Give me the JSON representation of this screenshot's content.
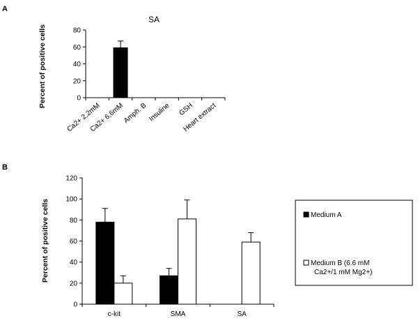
{
  "panels": {
    "a": {
      "letter": "A"
    },
    "b": {
      "letter": "B"
    }
  },
  "colors": {
    "medium_a": "#000000",
    "medium_b": "#ffffff",
    "axis": "#000000"
  },
  "chart_data": [
    {
      "type": "bar",
      "title": "SA",
      "ylabel": "Percent of positive cells",
      "xlabel": "",
      "ylim": [
        0,
        80
      ],
      "yticks": [
        0,
        20,
        40,
        60,
        80
      ],
      "categories": [
        "Ca2+ 2,2mM",
        "Ca2+ 6,6mM",
        "Amph. B",
        "Insuline",
        "GSH",
        "Heart extract"
      ],
      "series": [
        {
          "values": [
            0,
            59,
            0,
            0,
            0,
            0
          ],
          "errors": [
            0,
            8,
            0,
            0,
            0,
            0
          ],
          "color": "#000000"
        }
      ],
      "grid": false,
      "legend": "none"
    },
    {
      "type": "bar",
      "title": "",
      "ylabel": "Percent of positive cells",
      "xlabel": "",
      "ylim": [
        0,
        120
      ],
      "yticks": [
        0,
        20,
        40,
        60,
        80,
        100,
        120
      ],
      "categories": [
        "c-kit",
        "SMA",
        "SA"
      ],
      "series": [
        {
          "name": "Medium A",
          "values": [
            78,
            27,
            0
          ],
          "errors": [
            13,
            7,
            0
          ],
          "color": "#000000"
        },
        {
          "name": "Medium B (6.6 mM Ca2+/1 mM Mg2+)",
          "values": [
            20,
            81,
            59
          ],
          "errors": [
            7,
            18,
            9
          ],
          "color": "#ffffff"
        }
      ],
      "grid": false,
      "legend": "right"
    }
  ]
}
